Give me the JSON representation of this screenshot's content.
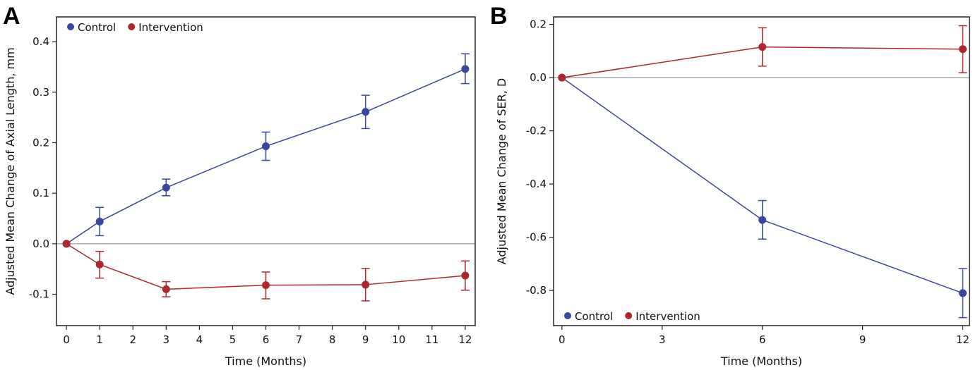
{
  "colors": {
    "control": "#3a47a0",
    "intervention": "#b0262e",
    "zero_line": "#999999"
  },
  "chart_data": [
    {
      "panel_label": "A",
      "type": "line",
      "xlabel": "Time (Months)",
      "ylabel": "Adjusted Mean Change of Axial Length, mm",
      "xlim": [
        -0.3,
        12.3
      ],
      "ylim": [
        -0.162,
        0.449
      ],
      "xticks": [
        0,
        1,
        2,
        3,
        4,
        5,
        6,
        7,
        8,
        9,
        10,
        11,
        12
      ],
      "yticks": [
        -0.1,
        0.0,
        0.1,
        0.2,
        0.3,
        0.4
      ],
      "ytick_labels": [
        "-0.1",
        "0.0",
        "0.1",
        "0.2",
        "0.3",
        "0.4"
      ],
      "reference_line_y": 0,
      "legend_position": "top-left",
      "grid": false,
      "series": [
        {
          "name": "Control",
          "color_key": "control",
          "x": [
            0,
            1,
            3,
            6,
            9,
            12
          ],
          "y": [
            0,
            0.044,
            0.111,
            0.193,
            0.261,
            0.346
          ],
          "lower": [
            null,
            0.016,
            0.095,
            0.165,
            0.228,
            0.317
          ],
          "upper": [
            null,
            0.072,
            0.128,
            0.221,
            0.294,
            0.376
          ]
        },
        {
          "name": "Intervention",
          "color_key": "intervention",
          "x": [
            0,
            1,
            3,
            6,
            9,
            12
          ],
          "y": [
            0,
            -0.041,
            -0.09,
            -0.082,
            -0.081,
            -0.063
          ],
          "lower": [
            null,
            -0.068,
            -0.105,
            -0.109,
            -0.113,
            -0.092
          ],
          "upper": [
            null,
            -0.015,
            -0.075,
            -0.056,
            -0.049,
            -0.034
          ]
        }
      ]
    },
    {
      "panel_label": "B",
      "type": "line",
      "xlabel": "Time (Months)",
      "ylabel": "Adjusted Mean Change of SER, D",
      "xlim": [
        -0.25,
        12.2
      ],
      "ylim": [
        -0.932,
        0.228
      ],
      "xticks": [
        0,
        3,
        6,
        9,
        12
      ],
      "yticks": [
        -0.8,
        -0.6,
        -0.4,
        -0.2,
        0.0,
        0.2
      ],
      "ytick_labels": [
        "-0.8",
        "-0.6",
        "-0.4",
        "-0.2",
        "0.0",
        "0.2"
      ],
      "reference_line_y": 0,
      "legend_position": "bottom-left",
      "grid": false,
      "series": [
        {
          "name": "Control",
          "color_key": "control",
          "x": [
            0,
            6,
            12
          ],
          "y": [
            0,
            -0.535,
            -0.81
          ],
          "lower": [
            null,
            -0.607,
            -0.902
          ],
          "upper": [
            null,
            -0.462,
            -0.718
          ]
        },
        {
          "name": "Intervention",
          "color_key": "intervention",
          "x": [
            0,
            6,
            12
          ],
          "y": [
            0,
            0.115,
            0.107
          ],
          "lower": [
            null,
            0.043,
            0.018
          ],
          "upper": [
            null,
            0.187,
            0.195
          ]
        }
      ]
    }
  ]
}
